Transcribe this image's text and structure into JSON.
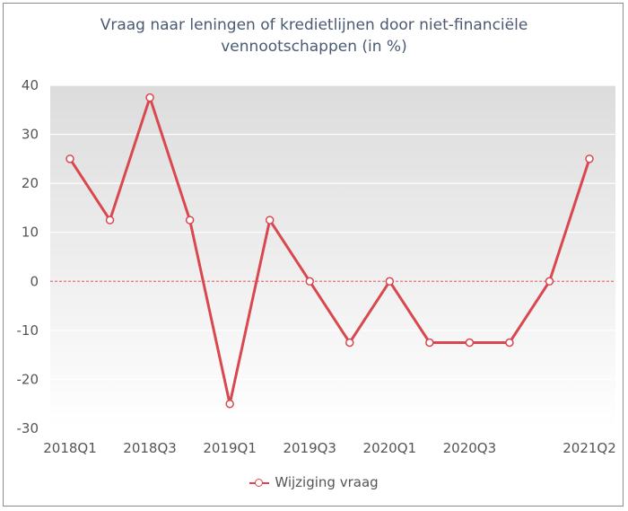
{
  "chart_data": {
    "type": "line",
    "title": "Vraag naar leningen of kredietlijnen door niet-financiële vennootschappen (in %)",
    "title_lines": [
      "Vraag naar leningen of kredietlijnen door niet-financiële",
      "vennootschappen (in %)"
    ],
    "x": [
      "2018Q1",
      "2018Q2",
      "2018Q3",
      "2018Q4",
      "2019Q1",
      "2019Q2",
      "2019Q3",
      "2019Q4",
      "2020Q1",
      "2020Q2",
      "2020Q3",
      "2020Q4",
      "2021Q1",
      "2021Q2"
    ],
    "x_tick_labels": [
      "2018Q1",
      "2018Q3",
      "2019Q1",
      "2019Q3",
      "2020Q1",
      "2020Q3",
      "2021Q2"
    ],
    "series": [
      {
        "name": "Wijziging vraag",
        "color": "#d9474f",
        "values": [
          25,
          12.5,
          37.5,
          12.5,
          -25,
          12.5,
          0,
          -12.5,
          0,
          -12.5,
          -12.5,
          -12.5,
          0,
          25
        ]
      }
    ],
    "ylim": [
      -30,
      40
    ],
    "yticks": [
      40,
      30,
      20,
      10,
      0,
      -10,
      -20,
      -30
    ],
    "zero_line": "dashed",
    "background": "gradient-gray",
    "legend": "bottom"
  }
}
